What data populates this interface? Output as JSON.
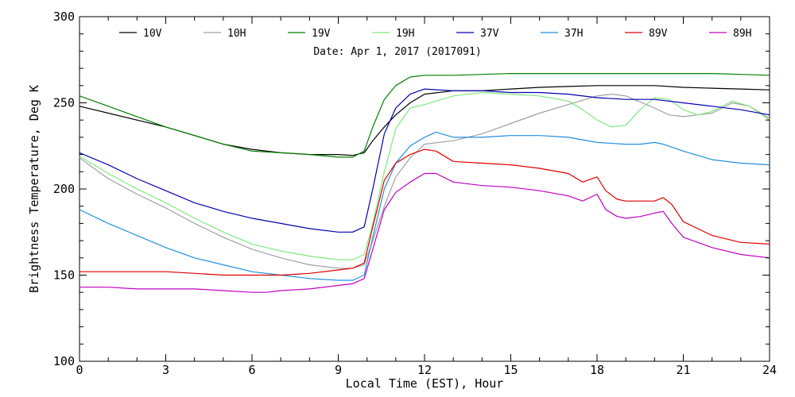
{
  "chart_data": {
    "type": "line",
    "annotation": "Date: Apr  1, 2017 (2017091)",
    "xlabel": "Local Time (EST), Hour",
    "ylabel": "Brightness Temperature, Deg K",
    "xlim": [
      0,
      24
    ],
    "ylim": [
      100,
      300
    ],
    "xticks": [
      0,
      3,
      6,
      9,
      12,
      15,
      18,
      21,
      24
    ],
    "yticks": [
      100,
      150,
      200,
      250,
      300
    ],
    "grid": false,
    "legend_position": "top",
    "series": [
      {
        "name": "10V",
        "color": "#000000",
        "x": [
          0,
          1,
          2,
          3,
          4,
          5,
          6,
          7,
          8,
          9,
          9.5,
          9.9,
          10.2,
          10.6,
          11,
          11.5,
          12,
          13,
          14,
          15,
          16,
          17,
          18,
          19,
          20,
          21,
          22,
          23,
          24
        ],
        "y": [
          248,
          244,
          240,
          236,
          231,
          226,
          223,
          221,
          220,
          220,
          219.5,
          221,
          228,
          236,
          243,
          250,
          255,
          257,
          257,
          258,
          259,
          259.5,
          260,
          260,
          260,
          259,
          258.5,
          258,
          257.5
        ]
      },
      {
        "name": "10H",
        "color": "#a0a0a0",
        "x": [
          0,
          0.5,
          1,
          2,
          3,
          4,
          5,
          6,
          7,
          8,
          9,
          9.5,
          9.9,
          10.2,
          10.6,
          11,
          11.5,
          12,
          13,
          14,
          15,
          16,
          17,
          18,
          18.5,
          19,
          20,
          20.5,
          21,
          22,
          22.7,
          23.3,
          24
        ],
        "y": [
          218,
          212,
          206,
          197,
          189,
          180,
          172,
          165,
          160,
          156,
          154,
          154,
          156,
          170,
          190,
          207,
          218,
          226,
          228,
          232,
          238,
          244,
          249,
          254,
          255,
          254,
          247,
          243,
          242,
          244,
          250,
          248,
          241
        ]
      },
      {
        "name": "19V",
        "color": "#008000",
        "x": [
          0,
          1,
          2,
          3,
          4,
          5,
          6,
          7,
          8,
          9,
          9.5,
          9.9,
          10.2,
          10.6,
          11,
          11.5,
          12,
          13,
          14,
          15,
          16,
          17,
          18,
          19,
          20,
          21,
          22,
          23,
          24
        ],
        "y": [
          254,
          248,
          242,
          236,
          231,
          226,
          222,
          221,
          220,
          218.5,
          218.5,
          222,
          236,
          252,
          260,
          265,
          266,
          266,
          266.5,
          267,
          267,
          267,
          267,
          267,
          267,
          267,
          267,
          266.5,
          266
        ]
      },
      {
        "name": "19H",
        "color": "#80e880",
        "x": [
          0,
          0.5,
          1,
          2,
          3,
          4,
          5,
          6,
          7,
          8,
          9,
          9.5,
          9.9,
          10.2,
          10.6,
          11,
          11.5,
          12,
          13,
          14,
          15,
          16,
          17,
          17.5,
          18,
          18.5,
          19,
          19.5,
          20,
          20.5,
          21,
          21.5,
          22,
          22.7,
          23.3,
          24
        ],
        "y": [
          219,
          214,
          209,
          200,
          192,
          183,
          175,
          168,
          164,
          161,
          159,
          159,
          162,
          180,
          210,
          235,
          247,
          249,
          254,
          256,
          255,
          254,
          251,
          246,
          240,
          236,
          237,
          246,
          253,
          252,
          246,
          243,
          245,
          251,
          248,
          240
        ]
      },
      {
        "name": "37V",
        "color": "#0000b0",
        "x": [
          0,
          1,
          2,
          3,
          4,
          5,
          6,
          7,
          8,
          9,
          9.5,
          9.9,
          10.2,
          10.6,
          11,
          11.5,
          12,
          13,
          14,
          15,
          16,
          17,
          18,
          19,
          20,
          21,
          22,
          23,
          24
        ],
        "y": [
          221,
          214,
          206,
          199,
          192,
          187,
          183,
          180,
          177,
          175,
          175,
          178,
          200,
          232,
          247,
          255,
          258,
          257,
          257,
          256,
          256,
          255,
          253,
          252,
          252,
          250,
          248,
          246,
          243
        ]
      },
      {
        "name": "37H",
        "color": "#2090e0",
        "x": [
          0,
          1,
          2,
          3,
          4,
          5,
          6,
          7,
          8,
          9,
          9.5,
          9.9,
          10.2,
          10.6,
          11,
          11.5,
          12,
          12.4,
          13,
          14,
          15,
          16,
          17,
          18,
          19,
          19.5,
          20,
          20.3,
          21,
          22,
          23,
          24
        ],
        "y": [
          188,
          180,
          173,
          166,
          160,
          156,
          152,
          150,
          148,
          147,
          147,
          150,
          172,
          200,
          215,
          225,
          230,
          233,
          230,
          230,
          231,
          231,
          230,
          227,
          226,
          226,
          227,
          226,
          222,
          217,
          215,
          214
        ]
      },
      {
        "name": "89V",
        "color": "#e00000",
        "x": [
          0,
          1,
          2,
          3,
          4,
          5,
          6,
          7,
          8,
          9,
          9.5,
          9.9,
          10.2,
          10.6,
          11,
          11.5,
          12,
          12.4,
          13,
          14,
          15,
          16,
          17,
          17.5,
          18,
          18.3,
          18.7,
          19,
          19.5,
          20,
          20.3,
          20.6,
          21,
          22,
          23,
          24
        ],
        "y": [
          152,
          152,
          152,
          152,
          151,
          150,
          150,
          150,
          151,
          153,
          154,
          157,
          178,
          205,
          215,
          220,
          223,
          222,
          216,
          215,
          214,
          212,
          209,
          204,
          207,
          199,
          194,
          193,
          193,
          193,
          195,
          191,
          181,
          173,
          169,
          168
        ]
      },
      {
        "name": "89H",
        "color": "#c000c0",
        "x": [
          0,
          1,
          2,
          3,
          4,
          5,
          6,
          6.5,
          7,
          8,
          9,
          9.5,
          9.9,
          10.2,
          10.6,
          11,
          11.5,
          12,
          12.4,
          13,
          14,
          15,
          16,
          17,
          17.5,
          18,
          18.3,
          18.7,
          19,
          19.5,
          20,
          20.3,
          20.6,
          21,
          22,
          23,
          24
        ],
        "y": [
          143,
          143,
          142,
          142,
          142,
          141,
          140,
          140,
          141,
          142,
          144,
          145,
          148,
          165,
          188,
          198,
          204,
          209,
          209,
          204,
          202,
          201,
          199,
          196,
          193,
          197,
          188,
          184,
          183,
          184,
          186,
          187,
          180,
          172,
          166,
          162,
          160
        ]
      }
    ]
  }
}
